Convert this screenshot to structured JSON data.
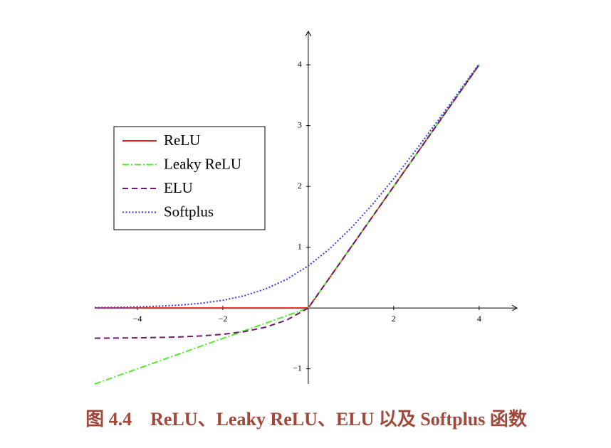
{
  "chart_data": {
    "type": "line",
    "caption": "图 4.4　ReLU、Leaky ReLU、ELU 以及 Softplus 函数",
    "x": [
      -5,
      -4.5,
      -4,
      -3.5,
      -3,
      -2.5,
      -2,
      -1.5,
      -1,
      -0.5,
      0,
      0.5,
      1,
      1.5,
      2,
      2.5,
      3,
      3.5,
      4
    ],
    "series": [
      {
        "name": "ReLU",
        "color": "#e8201c",
        "dash": "solid",
        "values": [
          0,
          0,
          0,
          0,
          0,
          0,
          0,
          0,
          0,
          0,
          0,
          0.5,
          1,
          1.5,
          2,
          2.5,
          3,
          3.5,
          4
        ]
      },
      {
        "name": "Leaky ReLU",
        "color": "#55e830",
        "dash": "dashdot",
        "values": [
          -1.25,
          -1.125,
          -1,
          -0.875,
          -0.75,
          -0.625,
          -0.5,
          -0.375,
          -0.25,
          -0.125,
          0,
          0.5,
          1,
          1.5,
          2,
          2.5,
          3,
          3.5,
          4
        ]
      },
      {
        "name": "ELU",
        "color": "#6a1a6e",
        "dash": "dashed",
        "values": [
          -0.4966,
          -0.4944,
          -0.4908,
          -0.4849,
          -0.4751,
          -0.459,
          -0.4323,
          -0.3884,
          -0.3161,
          -0.1967,
          0,
          0.5,
          1,
          1.5,
          2,
          2.5,
          3,
          3.5,
          4
        ]
      },
      {
        "name": "Softplus",
        "color": "#3a3ae8",
        "dash": "dotted",
        "values": [
          0.0067,
          0.011,
          0.0181,
          0.0298,
          0.0486,
          0.0789,
          0.1269,
          0.2014,
          0.3133,
          0.4741,
          0.6931,
          0.9741,
          1.3133,
          1.7014,
          2.1269,
          2.5789,
          3.0486,
          3.5298,
          4.0181
        ]
      }
    ],
    "xlim": [
      -5,
      4.87
    ],
    "ylim": [
      -1.25,
      4.54
    ],
    "xticks": [
      {
        "value": -4,
        "label": "−4"
      },
      {
        "value": -2,
        "label": "−2"
      },
      2,
      4
    ],
    "yticks": [
      {
        "value": -1,
        "label": "−1"
      },
      1,
      2,
      3,
      4
    ],
    "legend": "upper left"
  }
}
